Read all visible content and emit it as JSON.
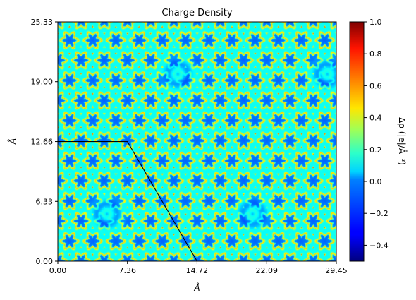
{
  "chart_data": {
    "type": "heatmap",
    "title": "Charge Density",
    "xlabel": "Å",
    "ylabel": "Å",
    "xlim": [
      0,
      29.45
    ],
    "ylim": [
      0,
      25.33
    ],
    "xticks": [
      "0.00",
      "7.36",
      "14.72",
      "22.09",
      "29.45"
    ],
    "yticks": [
      "0.00",
      "6.33",
      "12.66",
      "19.00",
      "25.33"
    ],
    "colorbar": {
      "label": "Δρ (|e|/Å⁻³)",
      "range": [
        -0.5,
        1.0
      ],
      "ticks": [
        "−0.4",
        "−0.2",
        "0.0",
        "0.2",
        "0.4",
        "0.6",
        "0.8",
        "1.0"
      ],
      "tick_values": [
        -0.4,
        -0.2,
        0.0,
        0.2,
        0.4,
        0.6,
        0.8,
        1.0
      ],
      "colormap": "jet"
    },
    "cell_outline": [
      [
        0,
        12.66
      ],
      [
        7.36,
        12.66
      ],
      [
        14.72,
        0
      ]
    ],
    "field": {
      "pattern": "hexagonal lattice of star-shaped low-density regions (~ -0.15) separated by ~0.1 background with yellow/orange rings (~0.4-0.6) around each star",
      "defects": [
        [
          5.2,
          5.0
        ],
        [
          12.7,
          19.8
        ],
        [
          20.6,
          5.0
        ],
        [
          28.5,
          19.8
        ]
      ]
    }
  }
}
